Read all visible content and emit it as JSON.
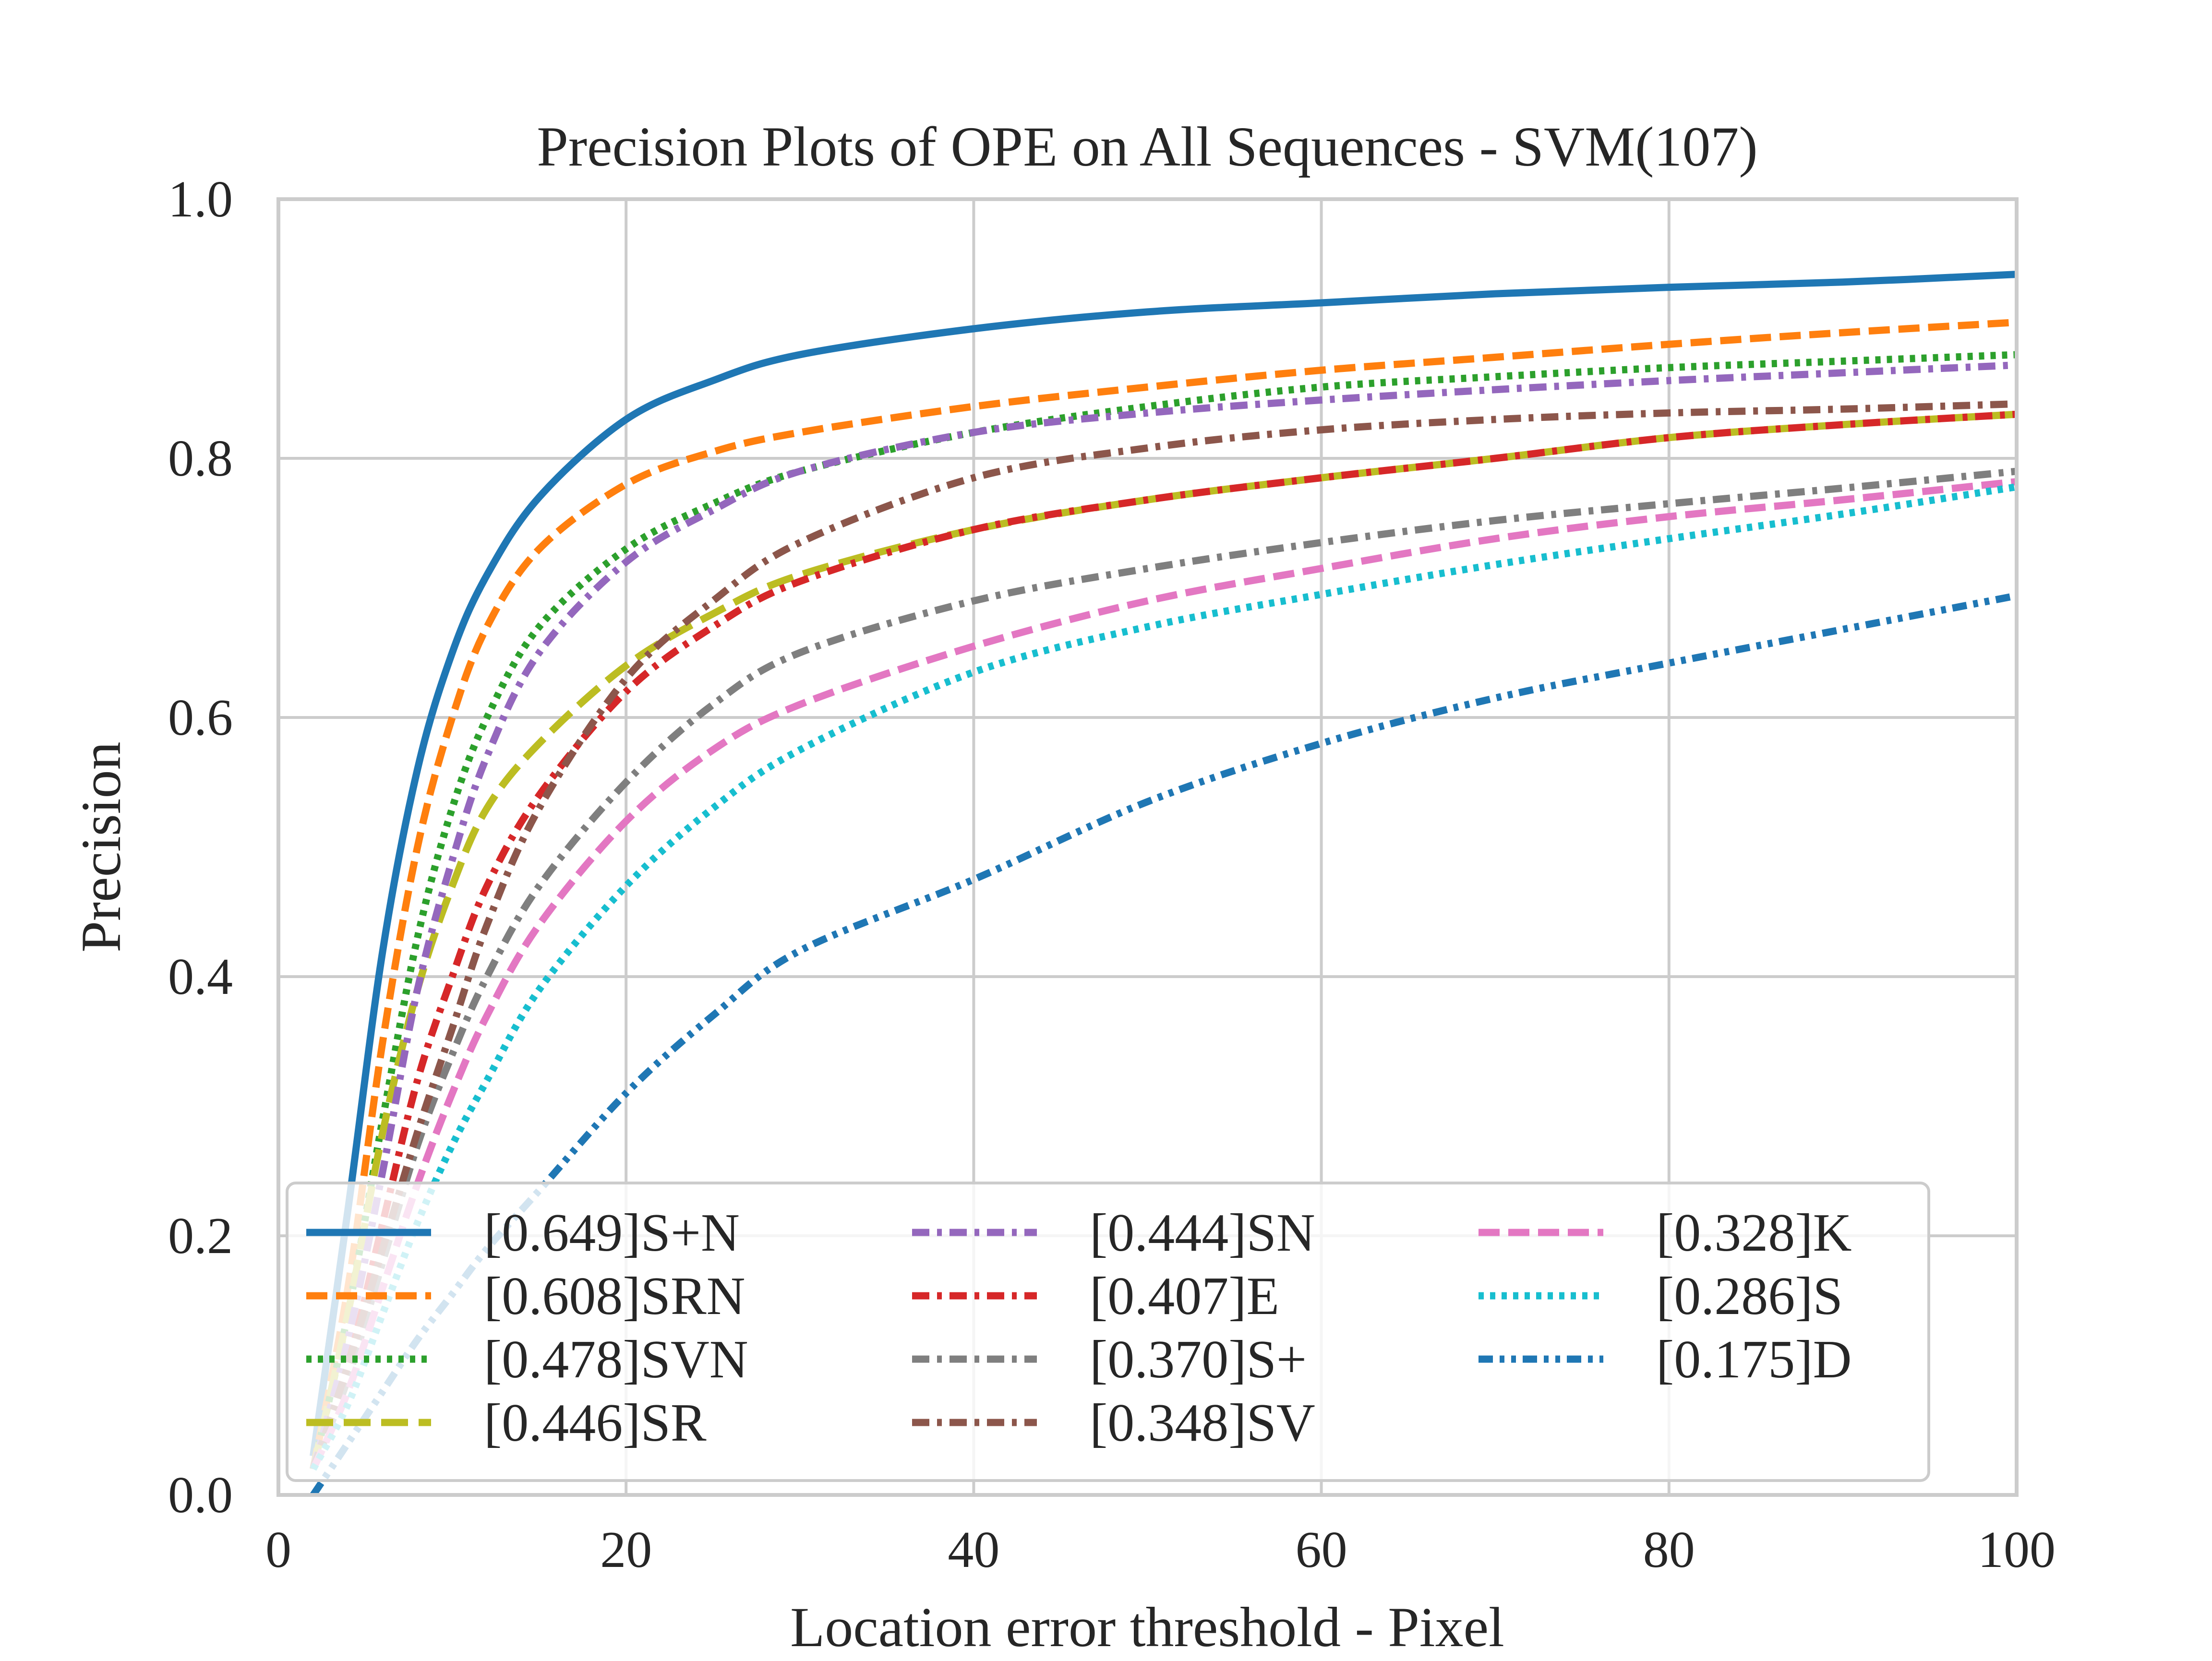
{
  "chart_data": {
    "type": "line",
    "title": "Precision Plots of OPE on All Sequences - SVM(107)",
    "xlabel": "Location error threshold - Pixel",
    "ylabel": "Precision",
    "xlim": [
      0,
      100
    ],
    "ylim": [
      0,
      1
    ],
    "xticks": [
      0,
      20,
      40,
      60,
      80,
      100
    ],
    "xtick_labels": [
      "0",
      "20",
      "40",
      "60",
      "80",
      "100"
    ],
    "yticks": [
      0,
      0.2,
      0.4,
      0.6,
      0.8,
      1.0
    ],
    "ytick_labels": [
      "0.0",
      "0.2",
      "0.4",
      "0.6",
      "0.8",
      "1.0"
    ],
    "grid": true,
    "legend_position": "lower-center",
    "legend_columns": 3,
    "x": [
      2,
      4,
      6,
      8,
      10,
      12,
      15,
      20,
      25,
      30,
      40,
      50,
      60,
      70,
      80,
      90,
      100
    ],
    "series": [
      {
        "name": "[0.649]S+N",
        "color": "#1f77b4",
        "dash": "solid",
        "values": [
          0.03,
          0.22,
          0.42,
          0.56,
          0.65,
          0.71,
          0.77,
          0.83,
          0.86,
          0.88,
          0.9,
          0.913,
          0.92,
          0.927,
          0.932,
          0.936,
          0.942
        ]
      },
      {
        "name": "[0.608]SRN",
        "color": "#ff7f0e",
        "dash": "dashed",
        "values": [
          0.02,
          0.16,
          0.35,
          0.5,
          0.6,
          0.67,
          0.73,
          0.78,
          0.805,
          0.82,
          0.84,
          0.855,
          0.868,
          0.878,
          0.888,
          0.897,
          0.905
        ]
      },
      {
        "name": "[0.478]SVN",
        "color": "#2ca02c",
        "dash": "dotted",
        "values": [
          0.02,
          0.14,
          0.29,
          0.43,
          0.53,
          0.6,
          0.67,
          0.73,
          0.765,
          0.79,
          0.82,
          0.84,
          0.855,
          0.863,
          0.87,
          0.875,
          0.88
        ]
      },
      {
        "name": "[0.446]SR",
        "color": "#bcbd22",
        "dash": "longdash",
        "values": [
          0.02,
          0.14,
          0.28,
          0.39,
          0.47,
          0.53,
          0.58,
          0.64,
          0.68,
          0.71,
          0.745,
          0.768,
          0.785,
          0.8,
          0.816,
          0.826,
          0.834
        ]
      },
      {
        "name": "[0.444]SN",
        "color": "#9467bd",
        "dash": "dashdot",
        "values": [
          0.02,
          0.12,
          0.25,
          0.39,
          0.49,
          0.57,
          0.65,
          0.72,
          0.76,
          0.79,
          0.82,
          0.835,
          0.845,
          0.853,
          0.86,
          0.866,
          0.872
        ]
      },
      {
        "name": "[0.407]E",
        "color": "#d62728",
        "dash": "dashdot",
        "values": [
          0.02,
          0.1,
          0.21,
          0.32,
          0.4,
          0.47,
          0.54,
          0.62,
          0.67,
          0.705,
          0.745,
          0.768,
          0.785,
          0.8,
          0.816,
          0.826,
          0.834
        ]
      },
      {
        "name": "[0.370]S+",
        "color": "#7f7f7f",
        "dash": "dashdot",
        "values": [
          0.02,
          0.09,
          0.18,
          0.27,
          0.34,
          0.4,
          0.47,
          0.55,
          0.61,
          0.65,
          0.69,
          0.715,
          0.735,
          0.752,
          0.765,
          0.777,
          0.79
        ]
      },
      {
        "name": "[0.348]SV",
        "color": "#8c564b",
        "dash": "dashdot",
        "values": [
          0.02,
          0.1,
          0.19,
          0.28,
          0.36,
          0.44,
          0.53,
          0.63,
          0.69,
          0.735,
          0.785,
          0.808,
          0.822,
          0.83,
          0.835,
          0.838,
          0.842
        ]
      },
      {
        "name": "[0.328]K",
        "color": "#e377c2",
        "dash": "dashed",
        "values": [
          0.02,
          0.08,
          0.16,
          0.24,
          0.31,
          0.37,
          0.44,
          0.52,
          0.575,
          0.61,
          0.655,
          0.69,
          0.715,
          0.738,
          0.755,
          0.768,
          0.782
        ]
      },
      {
        "name": "[0.286]S",
        "color": "#17becf",
        "dash": "dotted",
        "values": [
          0.02,
          0.07,
          0.14,
          0.21,
          0.27,
          0.32,
          0.39,
          0.47,
          0.53,
          0.575,
          0.635,
          0.67,
          0.695,
          0.718,
          0.738,
          0.757,
          0.778
        ]
      },
      {
        "name": "[0.175]D",
        "color": "#1f77b4",
        "dash": "dashdotdot",
        "values": [
          0.0,
          0.04,
          0.08,
          0.12,
          0.155,
          0.19,
          0.235,
          0.31,
          0.37,
          0.42,
          0.475,
          0.535,
          0.58,
          0.615,
          0.642,
          0.668,
          0.694
        ]
      }
    ]
  }
}
